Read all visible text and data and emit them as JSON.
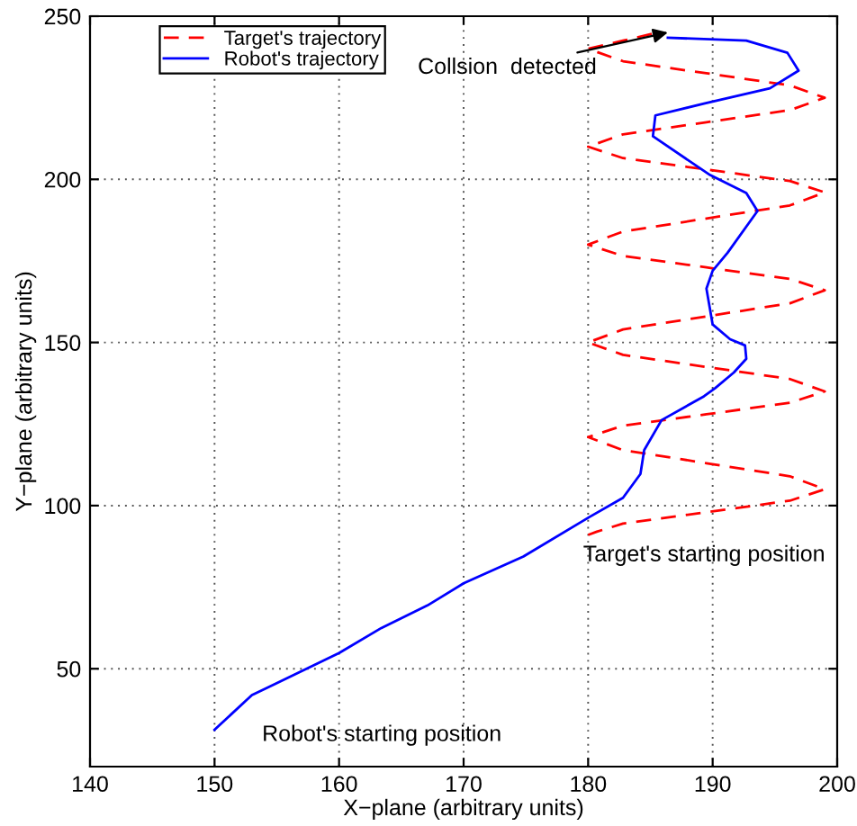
{
  "chart_data": {
    "type": "line",
    "xlabel": "X−plane (arbitrary units)",
    "ylabel": "Y−plane (arbitrary units)",
    "xlim": [
      140,
      200
    ],
    "ylim": [
      20,
      250
    ],
    "xticks": [
      140,
      150,
      160,
      170,
      180,
      190,
      200
    ],
    "yticks": [
      50,
      100,
      150,
      200,
      250
    ],
    "grid": true,
    "legend": "top left",
    "series": [
      {
        "name": "Target's trajectory",
        "color": "#ff0000",
        "line_style": "dashed",
        "x": [
          180,
          180.7,
          182.8,
          189.5,
          196.2,
          199,
          196.2,
          189.5,
          182.8,
          180,
          182.8,
          189.5,
          196.2,
          199,
          196.2,
          189.5,
          182.8,
          180,
          182.8,
          189.5,
          196.2,
          199,
          196.2,
          189.5,
          182.8,
          180,
          182.8,
          189.5,
          196.2,
          199,
          196.2,
          189.5,
          182.8,
          180,
          182.8,
          189.5,
          196.2,
          199,
          196.2,
          189.5,
          182.8,
          180,
          182.8,
          185.6
        ],
        "values": [
          91,
          92,
          94.5,
          98,
          101.5,
          105,
          109,
          113,
          117,
          121,
          124.5,
          128,
          131.5,
          135,
          138.8,
          142.5,
          146.2,
          150,
          154,
          158,
          162,
          166,
          169.5,
          173,
          176.5,
          180,
          184,
          188,
          192,
          196,
          199.5,
          203,
          206.5,
          210,
          213.8,
          217.5,
          221.2,
          225,
          228.8,
          232.5,
          236.2,
          240,
          242.5,
          245
        ]
      },
      {
        "name": "Robot's trajectory",
        "color": "#0000ff",
        "line_style": "solid",
        "x": [
          150,
          153.0,
          160,
          163.4,
          167.1,
          170.0,
          174.8,
          180.1,
          182.8,
          184.2,
          184.5,
          185.9,
          189.3,
          190.2,
          191.7,
          192.7,
          192.6,
          191.4,
          190.0,
          189.5,
          190,
          191.2,
          193.6,
          192.7,
          189.8,
          185.2,
          185.4,
          189.3,
          194.6,
          196.9,
          196.0,
          192.7,
          186.4
        ],
        "values": [
          31.3,
          41.9,
          54.8,
          62.5,
          69.4,
          76.2,
          84.4,
          96.5,
          102.4,
          109.7,
          117,
          126.2,
          133.5,
          136.0,
          140.8,
          145,
          149.1,
          151,
          155.5,
          166.5,
          172,
          177.5,
          190.3,
          195.8,
          201.3,
          213.2,
          219.6,
          223.2,
          227.9,
          233.3,
          238.8,
          242.5,
          243.4
        ]
      }
    ],
    "annotations": [
      {
        "text": "Collsion  detected",
        "x": 186.4,
        "y": 245
      },
      {
        "text": "Target's starting position",
        "x": 180,
        "y": 91
      },
      {
        "text": "Robot's starting position",
        "x": 150,
        "y": 31.3
      }
    ]
  }
}
